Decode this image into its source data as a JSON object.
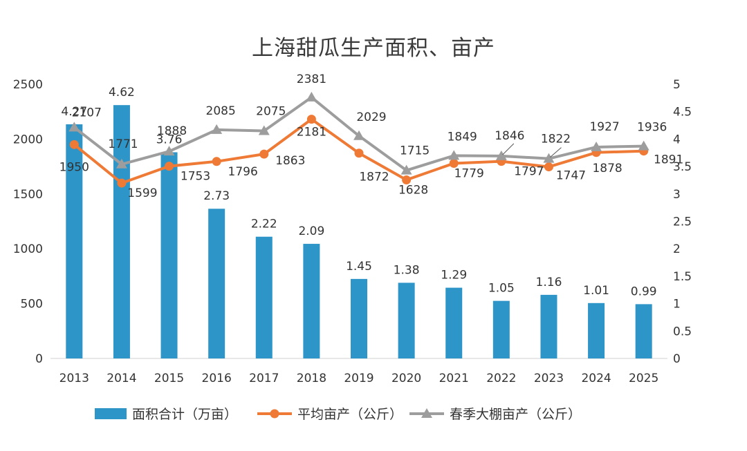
{
  "chart_data": {
    "type": "bar+line",
    "title": "上海甜瓜生产面积、亩产",
    "categories": [
      "2013",
      "2014",
      "2015",
      "2016",
      "2017",
      "2018",
      "2019",
      "2020",
      "2021",
      "2022",
      "2023",
      "2024",
      "2025"
    ],
    "left_axis": {
      "ylim": [
        0,
        2500
      ],
      "ticks": [
        "0",
        "500",
        "1000",
        "1500",
        "2000",
        "2500"
      ]
    },
    "right_axis": {
      "ylim": [
        0,
        5
      ],
      "ticks": [
        "0",
        "0.5",
        "1",
        "1.5",
        "2",
        "2.5",
        "3",
        "3.5",
        "4",
        "4.5",
        "5"
      ]
    },
    "series": [
      {
        "name": "面积合计（万亩）",
        "kind": "bar",
        "axis": "right",
        "color": "#2e95c8",
        "values": [
          4.27,
          4.62,
          3.76,
          2.73,
          2.22,
          2.09,
          1.45,
          1.38,
          1.29,
          1.05,
          1.16,
          1.01,
          0.99
        ],
        "labels": [
          "4.27",
          "4.62",
          "3.76",
          "2.73",
          "2.22",
          "2.09",
          "1.45",
          "1.38",
          "1.29",
          "1.05",
          "1.16",
          "1.01",
          "0.99"
        ]
      },
      {
        "name": "平均亩产（公斤）",
        "kind": "line",
        "axis": "left",
        "color": "#ee7a36",
        "values": [
          1950,
          1599,
          1753,
          1796,
          1863,
          2181,
          1872,
          1628,
          1779,
          1797,
          1747,
          1878,
          1891
        ],
        "labels": [
          "1950",
          "1599",
          "1753",
          "1796",
          "1863",
          "2181",
          "1872",
          "1628",
          "1779",
          "1797",
          "1747",
          "1878",
          "1891"
        ]
      },
      {
        "name": "春季大棚亩产（公斤）",
        "kind": "line",
        "axis": "left",
        "color": "#9d9d9d",
        "values": [
          2107,
          1771,
          1888,
          2085,
          2075,
          2381,
          2029,
          1715,
          1849,
          1846,
          1822,
          1927,
          1936
        ],
        "labels": [
          "2107",
          "1771",
          "1888",
          "2085",
          "2075",
          "2381",
          "2029",
          "1715",
          "1849",
          "1846",
          "1822",
          "1927",
          "1936"
        ]
      }
    ],
    "legend_position": "bottom",
    "grid": false
  }
}
